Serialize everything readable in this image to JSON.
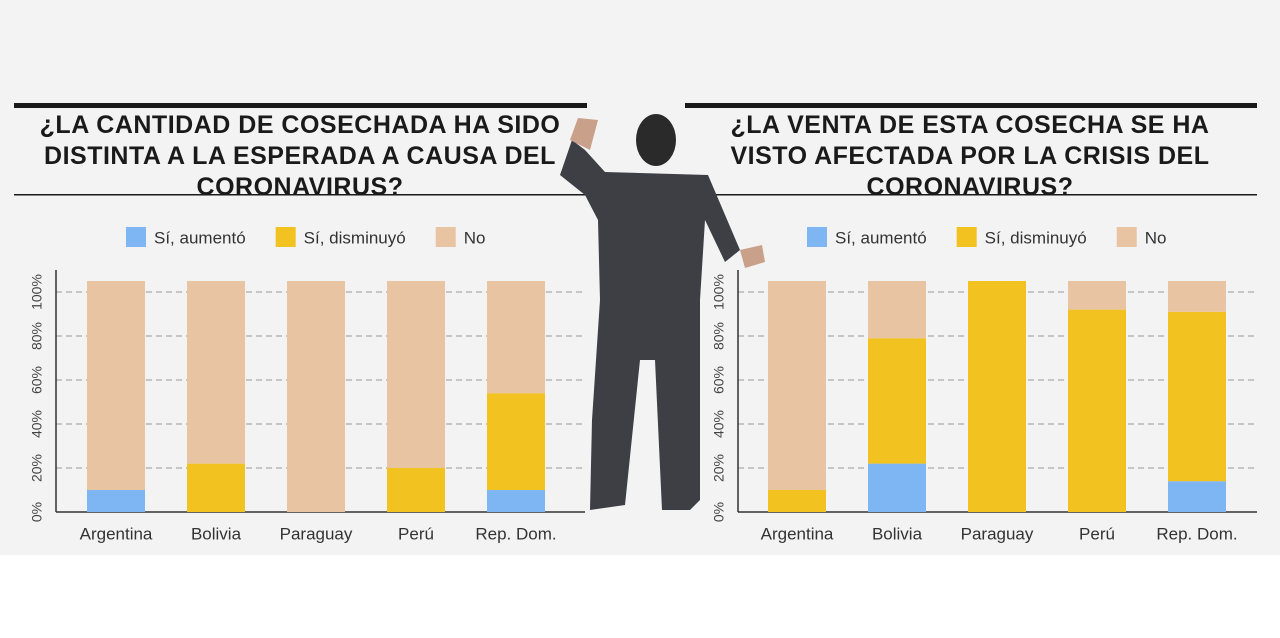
{
  "chart_data": [
    {
      "type": "bar",
      "stacked": true,
      "title": "¿LA CANTIDAD DE COSECHADA HA SIDO DISTINTA A LA ESPERADA A CAUSA DEL CORONAVIRUS?",
      "categories": [
        "Argentina",
        "Bolivia",
        "Paraguay",
        "Perú",
        "Rep. Dom."
      ],
      "series": [
        {
          "name": "Sí, aumentó",
          "color": "#7db6f2",
          "values": [
            10,
            0,
            0,
            0,
            10
          ]
        },
        {
          "name": "Sí, disminuyó",
          "color": "#f2c320",
          "values": [
            0,
            22,
            0,
            20,
            44
          ]
        },
        {
          "name": "No",
          "color": "#e9c4a3",
          "values": [
            95,
            83,
            105,
            85,
            51
          ]
        }
      ],
      "ylim": [
        0,
        110
      ],
      "yticks": [
        {
          "value": 0,
          "label": "0%"
        },
        {
          "value": 20,
          "label": "20%"
        },
        {
          "value": 40,
          "label": "40%"
        },
        {
          "value": 60,
          "label": "60%"
        },
        {
          "value": 80,
          "label": "80%"
        },
        {
          "value": 100,
          "label": "100%"
        }
      ],
      "grid": true,
      "legend": "top"
    },
    {
      "type": "bar",
      "stacked": true,
      "title": "¿LA VENTA DE ESTA COSECHA SE HA VISTO AFECTADA POR LA CRISIS DEL CORONAVIRUS?",
      "categories": [
        "Argentina",
        "Bolivia",
        "Paraguay",
        "Perú",
        "Rep. Dom."
      ],
      "series": [
        {
          "name": "Sí, aumentó",
          "color": "#7db6f2",
          "values": [
            0,
            22,
            0,
            0,
            14
          ]
        },
        {
          "name": "Sí, disminuyó",
          "color": "#f2c320",
          "values": [
            10,
            57,
            105,
            92,
            77
          ]
        },
        {
          "name": "No",
          "color": "#e9c4a3",
          "values": [
            95,
            26,
            0,
            13,
            14
          ]
        }
      ],
      "ylim": [
        0,
        110
      ],
      "yticks": [
        {
          "value": 0,
          "label": "0%"
        },
        {
          "value": 20,
          "label": "20%"
        },
        {
          "value": 40,
          "label": "40%"
        },
        {
          "value": 60,
          "label": "60%"
        },
        {
          "value": 80,
          "label": "80%"
        },
        {
          "value": 100,
          "label": "100%"
        }
      ],
      "grid": true,
      "legend": "top"
    }
  ]
}
